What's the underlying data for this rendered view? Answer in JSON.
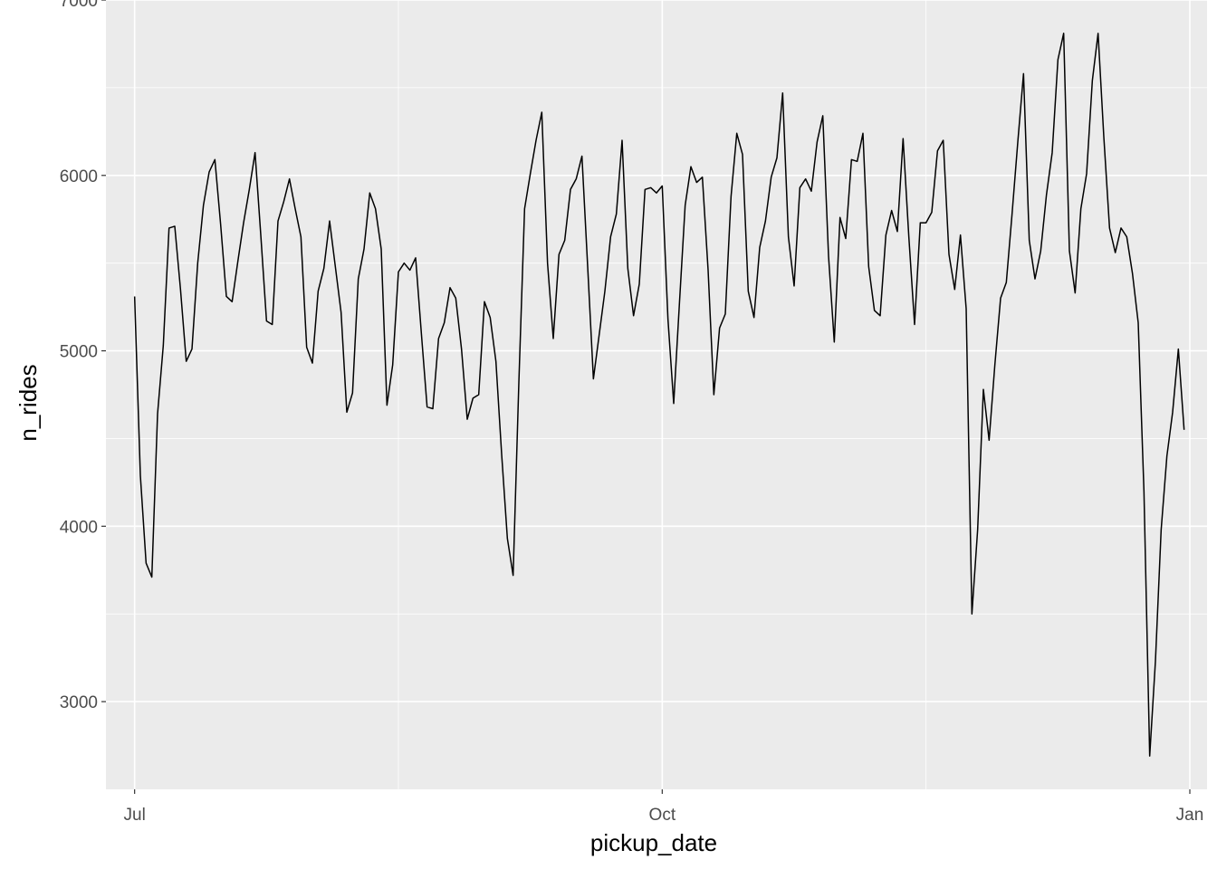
{
  "chart_data": {
    "type": "line",
    "xlabel": "pickup_date",
    "ylabel": "n_rides",
    "x_ticks": [
      "Jul",
      "Oct",
      "Jan"
    ],
    "x_tick_dates": [
      "2016-07-01",
      "2016-10-01",
      "2017-01-01"
    ],
    "xlim": [
      "2016-06-26",
      "2017-01-04"
    ],
    "y_ticks": [
      3000,
      4000,
      5000,
      6000,
      7000
    ],
    "ylim": [
      2500,
      7000
    ],
    "grid": true,
    "x": [
      "2016-07-01",
      "2016-07-02",
      "2016-07-03",
      "2016-07-04",
      "2016-07-05",
      "2016-07-06",
      "2016-07-07",
      "2016-07-08",
      "2016-07-09",
      "2016-07-10",
      "2016-07-11",
      "2016-07-12",
      "2016-07-13",
      "2016-07-14",
      "2016-07-15",
      "2016-07-16",
      "2016-07-17",
      "2016-07-18",
      "2016-07-19",
      "2016-07-20",
      "2016-07-21",
      "2016-07-22",
      "2016-07-23",
      "2016-07-24",
      "2016-07-25",
      "2016-07-26",
      "2016-07-27",
      "2016-07-28",
      "2016-07-29",
      "2016-07-30",
      "2016-07-31",
      "2016-08-01",
      "2016-08-02",
      "2016-08-03",
      "2016-08-04",
      "2016-08-05",
      "2016-08-06",
      "2016-08-07",
      "2016-08-08",
      "2016-08-09",
      "2016-08-10",
      "2016-08-11",
      "2016-08-12",
      "2016-08-13",
      "2016-08-14",
      "2016-08-15",
      "2016-08-16",
      "2016-08-17",
      "2016-08-18",
      "2016-08-19",
      "2016-08-20",
      "2016-08-21",
      "2016-08-22",
      "2016-08-23",
      "2016-08-24",
      "2016-08-25",
      "2016-08-26",
      "2016-08-27",
      "2016-08-28",
      "2016-08-29",
      "2016-08-30",
      "2016-08-31",
      "2016-09-01",
      "2016-09-02",
      "2016-09-03",
      "2016-09-04",
      "2016-09-05",
      "2016-09-06",
      "2016-09-07",
      "2016-09-08",
      "2016-09-09",
      "2016-09-10",
      "2016-09-11",
      "2016-09-12",
      "2016-09-13",
      "2016-09-14",
      "2016-09-15",
      "2016-09-16",
      "2016-09-17",
      "2016-09-18",
      "2016-09-19",
      "2016-09-20",
      "2016-09-21",
      "2016-09-22",
      "2016-09-23",
      "2016-09-24",
      "2016-09-25",
      "2016-09-26",
      "2016-09-27",
      "2016-09-28",
      "2016-09-29",
      "2016-09-30",
      "2016-10-01",
      "2016-10-02",
      "2016-10-03",
      "2016-10-04",
      "2016-10-05",
      "2016-10-06",
      "2016-10-07",
      "2016-10-08",
      "2016-10-09",
      "2016-10-10",
      "2016-10-11",
      "2016-10-12",
      "2016-10-13",
      "2016-10-14",
      "2016-10-15",
      "2016-10-16",
      "2016-10-17",
      "2016-10-18",
      "2016-10-19",
      "2016-10-20",
      "2016-10-21",
      "2016-10-22",
      "2016-10-23",
      "2016-10-24",
      "2016-10-25",
      "2016-10-26",
      "2016-10-27",
      "2016-10-28",
      "2016-10-29",
      "2016-10-30",
      "2016-10-31",
      "2016-11-01",
      "2016-11-02",
      "2016-11-03",
      "2016-11-04",
      "2016-11-05",
      "2016-11-06",
      "2016-11-07",
      "2016-11-08",
      "2016-11-09",
      "2016-11-10",
      "2016-11-11",
      "2016-11-12",
      "2016-11-13",
      "2016-11-14",
      "2016-11-15",
      "2016-11-16",
      "2016-11-17",
      "2016-11-18",
      "2016-11-19",
      "2016-11-20",
      "2016-11-21",
      "2016-11-22",
      "2016-11-23",
      "2016-11-24",
      "2016-11-25",
      "2016-11-26",
      "2016-11-27",
      "2016-11-28",
      "2016-11-29",
      "2016-11-30",
      "2016-12-01",
      "2016-12-02",
      "2016-12-03",
      "2016-12-04",
      "2016-12-05",
      "2016-12-06",
      "2016-12-07",
      "2016-12-08",
      "2016-12-09",
      "2016-12-10",
      "2016-12-11",
      "2016-12-12",
      "2016-12-13",
      "2016-12-14",
      "2016-12-15",
      "2016-12-16",
      "2016-12-17",
      "2016-12-18",
      "2016-12-19",
      "2016-12-20",
      "2016-12-21",
      "2016-12-22",
      "2016-12-23",
      "2016-12-24",
      "2016-12-25",
      "2016-12-26",
      "2016-12-27",
      "2016-12-28",
      "2016-12-29",
      "2016-12-30",
      "2016-12-31"
    ],
    "series": [
      {
        "values": [
          5310,
          4290,
          3790,
          3710,
          4640,
          5030,
          5700,
          5710,
          5350,
          4940,
          5010,
          5500,
          5830,
          6020,
          6090,
          5720,
          5310,
          5280,
          5510,
          5730,
          5920,
          6130,
          5660,
          5170,
          5150,
          5740,
          5850,
          5980,
          5810,
          5650,
          5020,
          4930,
          5340,
          5470,
          5740,
          5480,
          5220,
          4650,
          4760,
          5410,
          5580,
          5900,
          5810,
          5580,
          4690,
          4920,
          5450,
          5500,
          5460,
          5530,
          5100,
          4680,
          4670,
          5070,
          5160,
          5360,
          5300,
          5010,
          4610,
          4730,
          4750,
          5280,
          5190,
          4940,
          4410,
          3930,
          3720,
          4820,
          5810,
          6010,
          6200,
          6360,
          5500,
          5070,
          5550,
          5630,
          5920,
          5980,
          6110,
          5480,
          4840,
          5090,
          5340,
          5650,
          5780,
          6200,
          5470,
          5200,
          5380,
          5920,
          5930,
          5900,
          5940,
          5180,
          4700,
          5270,
          5830,
          6050,
          5960,
          5990,
          5460,
          4750,
          5130,
          5210,
          5880,
          6240,
          6120,
          5340,
          5190,
          5590,
          5740,
          5990,
          6100,
          6470,
          5650,
          5370,
          5930,
          5980,
          5910,
          6190,
          6340,
          5540,
          5050,
          5760,
          5640,
          6090,
          6080,
          6240,
          5480,
          5230,
          5200,
          5660,
          5800,
          5680,
          6210,
          5650,
          5150,
          5730,
          5730,
          5790,
          6140,
          6200,
          5550,
          5350,
          5660,
          5240,
          3500,
          3980,
          4780,
          4490,
          4920,
          5300,
          5390,
          5780,
          6190,
          6580,
          5630,
          5410,
          5570,
          5890,
          6130,
          6660,
          6810,
          5570,
          5330,
          5810,
          6010,
          6540,
          6810,
          6220,
          5700,
          5560,
          5700,
          5650,
          5440,
          5160,
          4200,
          2690,
          3230,
          3980,
          4400,
          4650,
          5010,
          4550
        ]
      }
    ]
  }
}
